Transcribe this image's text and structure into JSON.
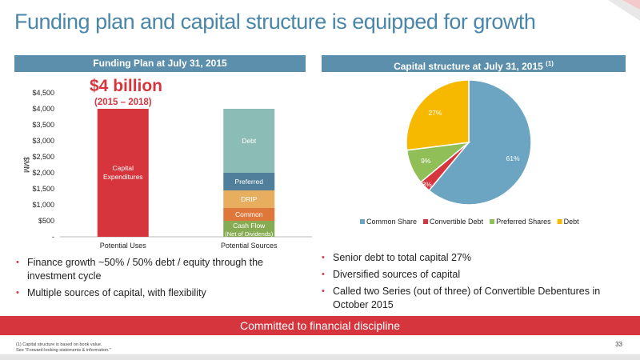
{
  "title": "Funding plan and capital structure is equipped for growth",
  "left_header": "Funding Plan at July 31, 2015",
  "right_header": "Capital structure at July 31, 2015",
  "right_header_sup": "(1)",
  "callout": {
    "amount": "$4 billion",
    "period": "(2015 – 2018)"
  },
  "chart_data": [
    {
      "type": "bar",
      "stacked": true,
      "ylabel": "$MM",
      "ylim": [
        0,
        4500
      ],
      "yticks": [
        "-",
        "$500",
        "$1,000",
        "$1,500",
        "$2,000",
        "$2,500",
        "$3,000",
        "$3,500",
        "$4,000",
        "$4,500"
      ],
      "categories": [
        "Potential Uses",
        "Potential Sources"
      ],
      "series": [
        {
          "name": "Capital Expenditures",
          "values": [
            4000,
            0
          ],
          "color": "#d6353d",
          "label": "Capital Expenditures"
        },
        {
          "name": "Cash Flow (Net of Dividends)",
          "values": [
            0,
            500
          ],
          "color": "#86ab52",
          "label": "Cash Flow",
          "sublabel": "(Net of Dividends)"
        },
        {
          "name": "Common",
          "values": [
            0,
            400
          ],
          "color": "#e0773a",
          "label": "Common"
        },
        {
          "name": "DRIP",
          "values": [
            0,
            550
          ],
          "color": "#e6ae5e",
          "label": "DRIP"
        },
        {
          "name": "Preferred",
          "values": [
            0,
            550
          ],
          "color": "#4f7f9a",
          "label": "Preferred"
        },
        {
          "name": "Debt",
          "values": [
            0,
            2000
          ],
          "color": "#8cbcb6",
          "label": "Debt"
        }
      ],
      "grid": false,
      "legend": "none"
    },
    {
      "type": "pie",
      "labels": [
        "Common Share",
        "Convertible Debt",
        "Preferred Shares",
        "Debt"
      ],
      "values": [
        61,
        3,
        9,
        27
      ],
      "value_labels": [
        "61%",
        "3%",
        "9%",
        "27%"
      ],
      "colors": [
        "#6ba5c1",
        "#d6353d",
        "#8fbf56",
        "#f7b900"
      ],
      "legend": "bottom"
    }
  ],
  "left_bullets": [
    "Finance growth ~50% / 50% debt / equity through the investment cycle",
    "Multiple sources of capital, with flexibility"
  ],
  "right_bullets": [
    "Senior debt to total capital 27%",
    "Diversified sources of capital",
    "Called two Series (out of three) of Convertible Debentures in October 2015"
  ],
  "bullet_glyph": "•",
  "banner": "Committed to financial discipline",
  "footnotes": [
    "(1)  Capital structure is based on book value.",
    "See \"Forward-looking statements & information.\""
  ],
  "page_number": "33"
}
